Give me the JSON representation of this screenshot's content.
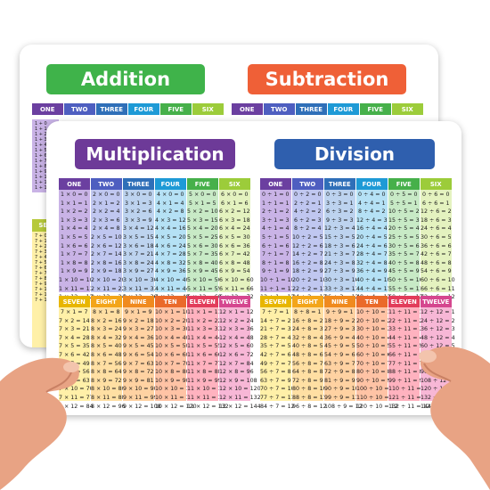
{
  "colors": {
    "addition": "#3fb34a",
    "subtraction": "#ef6037",
    "multiplication": "#6d3a98",
    "division": "#2f5fae",
    "col": [
      "#6b3fa0",
      "#4e5ec0",
      "#2f6fb8",
      "#1e9ad6",
      "#46b04a",
      "#9ccc3a",
      "#e8b600",
      "#f3a51a",
      "#f08a1e",
      "#ea6a2a",
      "#e23d5b",
      "#d5478f"
    ],
    "colLight": [
      "#c9b3e6",
      "#c0c7f0",
      "#bdd3ef",
      "#b5e1f5",
      "#c8eac6",
      "#e4f2bf",
      "#fff0a8",
      "#ffdfa3",
      "#ffd2a2",
      "#ffc3a5",
      "#ffb2bf",
      "#f7b7d6"
    ]
  },
  "back": {
    "addition_title": "Addition",
    "subtraction_title": "Subtraction",
    "addition_heads": [
      "ONE",
      "TWO",
      "THREE",
      "FOUR",
      "FIVE",
      "SIX"
    ],
    "subtraction_heads": [
      "ONE",
      "TWO",
      "THREE",
      "FOUR",
      "FIVE",
      "SIX"
    ],
    "partial_head": "SEV",
    "partial_rows": [
      "1 + 0",
      "1 + 1",
      "1 + 2",
      "1 + 3",
      "1 + 4",
      "1 + 5",
      "1 + 6",
      "1 + 7",
      "1 + 8",
      "1 + 9",
      "1 + 10",
      "1 + 11",
      "1 + 12"
    ],
    "partial_rows_low": [
      "7 + 0",
      "7 + 1",
      "7 + 2",
      "7 + 3",
      "7 + 4",
      "7 + 5",
      "7 + 6",
      "7 + 7",
      "7 + 8",
      "7 + 9",
      "7 + 10",
      "7 + 11",
      "7 + 12"
    ]
  },
  "front": {
    "multiplication_title": "Multiplication",
    "division_title": "Division",
    "multiplication": {
      "top_heads": [
        "ONE",
        "TWO",
        "THREE",
        "FOUR",
        "FIVE",
        "SIX"
      ],
      "bottom_heads": [
        "SEVEN",
        "EIGHT",
        "NINE",
        "TEN",
        "ELEVEN",
        "TWELVE"
      ],
      "columns": [
        [
          "1 × 0 = 0",
          "1 × 1 = 1",
          "1 × 2 = 2",
          "1 × 3 = 3",
          "1 × 4 = 4",
          "1 × 5 = 5",
          "1 × 6 = 6",
          "1 × 7 = 7",
          "1 × 8 = 8",
          "1 × 9 = 9",
          "1 × 10 = 10",
          "1 × 11 = 11",
          "1 × 12 = 12"
        ],
        [
          "2 × 0 = 0",
          "2 × 1 = 2",
          "2 × 2 = 4",
          "2 × 3 = 6",
          "2 × 4 = 8",
          "2 × 5 = 10",
          "2 × 6 = 12",
          "2 × 7 = 14",
          "2 × 8 = 16",
          "2 × 9 = 18",
          "2 × 10 = 20",
          "2 × 11 = 22",
          "2 × 12 = 24"
        ],
        [
          "3 × 0 = 0",
          "3 × 1 = 3",
          "3 × 2 = 6",
          "3 × 3 = 9",
          "3 × 4 = 12",
          "3 × 5 = 15",
          "3 × 6 = 18",
          "3 × 7 = 21",
          "3 × 8 = 24",
          "3 × 9 = 27",
          "3 × 10 = 30",
          "3 × 11 = 33",
          "3 × 12 = 36"
        ],
        [
          "4 × 0 = 0",
          "4 × 1 = 4",
          "4 × 2 = 8",
          "4 × 3 = 12",
          "4 × 4 = 16",
          "4 × 5 = 20",
          "4 × 6 = 24",
          "4 × 7 = 28",
          "4 × 8 = 32",
          "4 × 9 = 36",
          "4 × 10 = 40",
          "4 × 11 = 44",
          "4 × 12 = 48"
        ],
        [
          "5 × 0 = 0",
          "5 × 1 = 5",
          "5 × 2 = 10",
          "5 × 3 = 15",
          "5 × 4 = 20",
          "5 × 5 = 25",
          "5 × 6 = 30",
          "5 × 7 = 35",
          "5 × 8 = 40",
          "5 × 9 = 45",
          "5 × 10 = 50",
          "5 × 11 = 55",
          "5 × 12 = 60"
        ],
        [
          "6 × 0 = 0",
          "6 × 1 = 6",
          "6 × 2 = 12",
          "6 × 3 = 18",
          "6 × 4 = 24",
          "6 × 5 = 30",
          "6 × 6 = 36",
          "6 × 7 = 42",
          "6 × 8 = 48",
          "6 × 9 = 54",
          "6 × 10 = 60",
          "6 × 11 = 66",
          "6 × 12 = 72"
        ],
        [
          "7 × 1 = 7",
          "7 × 2 = 14",
          "7 × 3 = 21",
          "7 × 4 = 28",
          "7 × 5 = 35",
          "7 × 6 = 42",
          "7 × 7 = 49",
          "7 × 8 = 56",
          "7 × 9 = 63",
          "7 × 10 = 70",
          "7 × 11 = 77",
          "7 × 12 = 84"
        ],
        [
          "8 × 1 = 8",
          "8 × 2 = 16",
          "8 × 3 = 24",
          "8 × 4 = 32",
          "8 × 5 = 40",
          "8 × 6 = 48",
          "8 × 7 = 56",
          "8 × 8 = 64",
          "8 × 9 = 72",
          "8 × 10 = 80",
          "8 × 11 = 88",
          "8 × 12 = 96"
        ],
        [
          "9 × 1 = 9",
          "9 × 2 = 18",
          "9 × 3 = 27",
          "9 × 4 = 36",
          "9 × 5 = 45",
          "9 × 6 = 54",
          "9 × 7 = 63",
          "9 × 8 = 72",
          "9 × 9 = 81",
          "9 × 10 = 90",
          "9 × 11 = 99",
          "9 × 12 = 108"
        ],
        [
          "10 × 1 = 10",
          "10 × 2 = 20",
          "10 × 3 = 30",
          "10 × 4 = 40",
          "10 × 5 = 50",
          "10 × 6 = 60",
          "10 × 7 = 70",
          "10 × 8 = 80",
          "10 × 9 = 90",
          "10 × 10 = 100",
          "10 × 11 = 110",
          "10 × 12 = 120"
        ],
        [
          "11 × 1 = 11",
          "11 × 2 = 22",
          "11 × 3 = 33",
          "11 × 4 = 44",
          "11 × 5 = 55",
          "11 × 6 = 66",
          "11 × 7 = 77",
          "11 × 8 = 88",
          "11 × 9 = 99",
          "11 × 10 = 110",
          "11 × 11 = 121",
          "11 × 12 = 132"
        ],
        [
          "12 × 1 = 12",
          "12 × 2 = 24",
          "12 × 3 = 36",
          "12 × 4 = 48",
          "12 × 5 = 60",
          "12 × 6 = 72",
          "12 × 7 = 84",
          "12 × 8 = 96",
          "12 × 9 = 108",
          "12 × 10 = 120",
          "12 × 11 = 132",
          "12 × 12 = 144"
        ]
      ]
    },
    "division": {
      "top_heads": [
        "ONE",
        "TWO",
        "THREE",
        "FOUR",
        "FIVE",
        "SIX"
      ],
      "bottom_heads": [
        "SEVEN",
        "EIGHT",
        "NINE",
        "TEN",
        "ELEVEN",
        "TWELVE"
      ],
      "columns": [
        [
          "0 ÷ 1 = 0",
          "1 ÷ 1 = 1",
          "2 ÷ 1 = 2",
          "3 ÷ 1 = 3",
          "4 ÷ 1 = 4",
          "5 ÷ 1 = 5",
          "6 ÷ 1 = 6",
          "7 ÷ 1 = 7",
          "8 ÷ 1 = 8",
          "9 ÷ 1 = 9",
          "10 ÷ 1 = 10",
          "11 ÷ 1 = 11",
          "12 ÷ 1 = 12"
        ],
        [
          "0 ÷ 2 = 0",
          "2 ÷ 2 = 1",
          "4 ÷ 2 = 2",
          "6 ÷ 2 = 3",
          "8 ÷ 2 = 4",
          "10 ÷ 2 = 5",
          "12 ÷ 2 = 6",
          "14 ÷ 2 = 7",
          "16 ÷ 2 = 8",
          "18 ÷ 2 = 9",
          "20 ÷ 2 = 10",
          "22 ÷ 2 = 11",
          "24 ÷ 2 = 12"
        ],
        [
          "0 ÷ 3 = 0",
          "3 ÷ 3 = 1",
          "6 ÷ 3 = 2",
          "9 ÷ 3 = 3",
          "12 ÷ 3 = 4",
          "15 ÷ 3 = 5",
          "18 ÷ 3 = 6",
          "21 ÷ 3 = 7",
          "24 ÷ 3 = 8",
          "27 ÷ 3 = 9",
          "30 ÷ 3 = 10",
          "33 ÷ 3 = 11",
          "36 ÷ 3 = 12"
        ],
        [
          "0 ÷ 4 = 0",
          "4 ÷ 4 = 1",
          "8 ÷ 4 = 2",
          "12 ÷ 4 = 3",
          "16 ÷ 4 = 4",
          "20 ÷ 4 = 5",
          "24 ÷ 4 = 6",
          "28 ÷ 4 = 7",
          "32 ÷ 4 = 8",
          "36 ÷ 4 = 9",
          "40 ÷ 4 = 10",
          "44 ÷ 4 = 11",
          "48 ÷ 4 = 12"
        ],
        [
          "0 ÷ 5 = 0",
          "5 ÷ 5 = 1",
          "10 ÷ 5 = 2",
          "15 ÷ 5 = 3",
          "20 ÷ 5 = 4",
          "25 ÷ 5 = 5",
          "30 ÷ 5 = 6",
          "35 ÷ 5 = 7",
          "40 ÷ 5 = 8",
          "45 ÷ 5 = 9",
          "50 ÷ 5 = 10",
          "55 ÷ 5 = 11",
          "60 ÷ 5 = 12"
        ],
        [
          "0 ÷ 6 = 0",
          "6 ÷ 6 = 1",
          "12 ÷ 6 = 2",
          "18 ÷ 6 = 3",
          "24 ÷ 6 = 4",
          "30 ÷ 6 = 5",
          "36 ÷ 6 = 6",
          "42 ÷ 6 = 7",
          "48 ÷ 6 = 8",
          "54 ÷ 6 = 9",
          "60 ÷ 6 = 10",
          "66 ÷ 6 = 11",
          "72 ÷ 6 = 12"
        ],
        [
          "7 ÷ 7 = 1",
          "14 ÷ 7 = 2",
          "21 ÷ 7 = 3",
          "28 ÷ 7 = 4",
          "35 ÷ 7 = 5",
          "42 ÷ 7 = 6",
          "49 ÷ 7 = 7",
          "56 ÷ 7 = 8",
          "63 ÷ 7 = 9",
          "70 ÷ 7 = 10",
          "77 ÷ 7 = 11",
          "84 ÷ 7 = 12"
        ],
        [
          "8 ÷ 8 = 1",
          "16 ÷ 8 = 2",
          "24 ÷ 8 = 3",
          "32 ÷ 8 = 4",
          "40 ÷ 8 = 5",
          "48 ÷ 8 = 6",
          "56 ÷ 8 = 7",
          "64 ÷ 8 = 8",
          "72 ÷ 8 = 9",
          "80 ÷ 8 = 10",
          "88 ÷ 8 = 11",
          "96 ÷ 8 = 12"
        ],
        [
          "9 ÷ 9 = 1",
          "18 ÷ 9 = 2",
          "27 ÷ 9 = 3",
          "36 ÷ 9 = 4",
          "45 ÷ 9 = 5",
          "54 ÷ 9 = 6",
          "63 ÷ 9 = 7",
          "72 ÷ 9 = 8",
          "81 ÷ 9 = 9",
          "90 ÷ 9 = 10",
          "99 ÷ 9 = 11",
          "108 ÷ 9 = 12"
        ],
        [
          "10 ÷ 10 = 1",
          "20 ÷ 10 = 2",
          "30 ÷ 10 = 3",
          "40 ÷ 10 = 4",
          "50 ÷ 10 = 5",
          "60 ÷ 10 = 6",
          "70 ÷ 10 = 7",
          "80 ÷ 10 = 8",
          "90 ÷ 10 = 9",
          "100 ÷ 10 = 10",
          "110 ÷ 10 = 11",
          "120 ÷ 10 = 12"
        ],
        [
          "11 ÷ 11 = 1",
          "22 ÷ 11 = 2",
          "33 ÷ 11 = 3",
          "44 ÷ 11 = 4",
          "55 ÷ 11 = 5",
          "66 ÷ 11 = 6",
          "77 ÷ 11 = 7",
          "88 ÷ 11 = 8",
          "99 ÷ 11 = 9",
          "110 ÷ 11 = 10",
          "121 ÷ 11 = 11",
          "132 ÷ 11 = 12"
        ],
        [
          "12 ÷ 12 = 1",
          "24 ÷ 12 = 2",
          "36 ÷ 12 = 3",
          "48 ÷ 12 = 4",
          "60 ÷ 12 = 5",
          "72 ÷ 12 = 6",
          "84 ÷ 12 = 7",
          "96 ÷ 12 = 8",
          "108 ÷ 12 = 9",
          "120 ÷ 12 = 10",
          "132 ÷ 12 = 11",
          "144 ÷ 12 = 12"
        ]
      ]
    }
  }
}
